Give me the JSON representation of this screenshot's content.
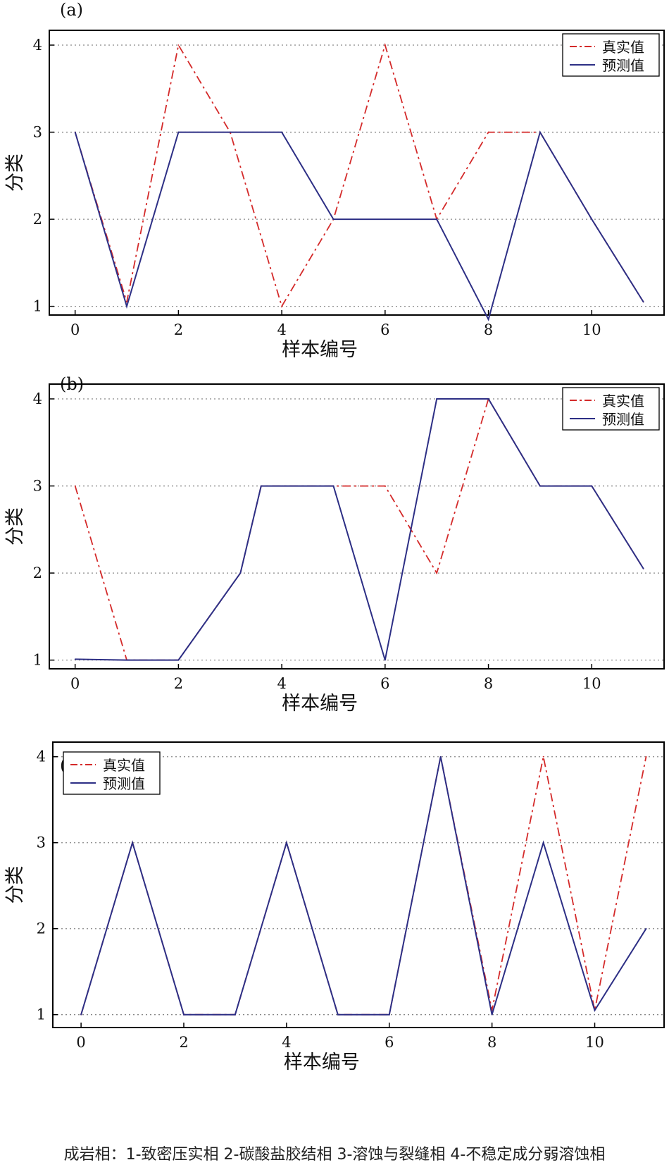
{
  "caption": "成岩相：1-致密压实相 2-碳酸盐胶结相 3-溶蚀与裂缝相 4-不稳定成分弱溶蚀相",
  "colors": {
    "true_series": "#d42a2a",
    "pred_series": "#2d2f85",
    "grid": "#888888",
    "axis": "#000000"
  },
  "chart_data": [
    {
      "type": "line",
      "panel_label": "(a)",
      "xlabel": "样本编号",
      "ylabel": "分类",
      "xlim": [
        -0.5,
        11.4
      ],
      "ylim": [
        0.9,
        4.17
      ],
      "xticks": [
        0,
        2,
        4,
        6,
        8,
        10
      ],
      "yticks": [
        1,
        2,
        3,
        4
      ],
      "grid": "horizontal dotted",
      "legend_position": "top-right",
      "series": [
        {
          "name": "真实值",
          "style": "dash-dot",
          "x": [
            0,
            1,
            2,
            3,
            4,
            5,
            6,
            7,
            8,
            9,
            10,
            11
          ],
          "y": [
            3,
            1.05,
            4,
            3,
            1,
            2,
            4,
            2,
            3,
            3,
            2,
            1.05
          ]
        },
        {
          "name": "预测值",
          "style": "solid",
          "x": [
            0,
            1,
            2,
            3,
            4,
            5,
            6,
            7,
            8,
            9,
            10,
            11
          ],
          "y": [
            3,
            1,
            3,
            3,
            3,
            2,
            2,
            2,
            0.85,
            3,
            2,
            1.05
          ]
        }
      ]
    },
    {
      "type": "line",
      "panel_label": "(b)",
      "xlabel": "样本编号",
      "ylabel": "分类",
      "xlim": [
        -0.5,
        11.4
      ],
      "ylim": [
        0.9,
        4.17
      ],
      "xticks": [
        0,
        2,
        4,
        6,
        8,
        10
      ],
      "yticks": [
        1,
        2,
        3,
        4
      ],
      "grid": "horizontal dotted",
      "legend_position": "top-right",
      "series": [
        {
          "name": "真实值",
          "style": "dash-dot",
          "x": [
            0,
            1,
            2,
            3.2,
            3.6,
            5,
            6,
            7,
            8,
            9,
            10,
            11
          ],
          "y": [
            3,
            1,
            1,
            2,
            3,
            3,
            3,
            2,
            4,
            3,
            3,
            2.05
          ]
        },
        {
          "name": "预测值",
          "style": "solid",
          "x": [
            0,
            1,
            2,
            3.2,
            3.6,
            5,
            6,
            7,
            8,
            9,
            10,
            11
          ],
          "y": [
            1.01,
            1,
            1,
            2,
            3,
            3,
            1,
            4,
            4,
            3,
            3,
            2.05
          ]
        }
      ]
    },
    {
      "type": "line",
      "panel_label": "(c)",
      "xlabel": "样本编号",
      "ylabel": "分类",
      "xlim": [
        -0.55,
        11.35
      ],
      "ylim": [
        0.85,
        4.17
      ],
      "xticks": [
        0,
        2,
        4,
        6,
        8,
        10
      ],
      "yticks": [
        1,
        2,
        3,
        4
      ],
      "grid": "horizontal dotted",
      "legend_position": "top-left",
      "series": [
        {
          "name": "真实值",
          "style": "dash-dot",
          "x": [
            0,
            1,
            2,
            3,
            4,
            5,
            6,
            7,
            8,
            9,
            10,
            11
          ],
          "y": [
            1,
            3,
            1,
            1,
            3,
            1,
            1,
            4,
            1.05,
            4,
            1.05,
            4
          ]
        },
        {
          "name": "预测值",
          "style": "solid",
          "x": [
            0,
            1,
            2,
            3,
            4,
            5,
            6,
            7,
            8,
            9,
            10,
            11
          ],
          "y": [
            1,
            3,
            1,
            1,
            3,
            1,
            1,
            4,
            1,
            3,
            1.05,
            2
          ]
        }
      ]
    }
  ]
}
